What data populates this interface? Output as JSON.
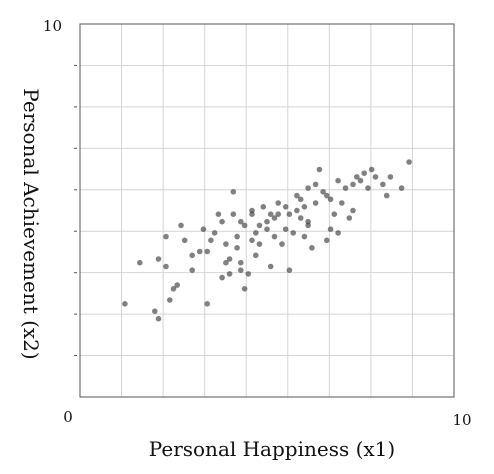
{
  "chart_data": {
    "type": "scatter",
    "title": "",
    "xlabel": "Personal Happiness (x1)",
    "ylabel": "Personal Achievement (x2)",
    "xlim": [
      0,
      10
    ],
    "ylim": [
      0,
      10
    ],
    "x_tick_labels": [
      "0",
      "10"
    ],
    "y_tick_labels": [
      "10"
    ],
    "grid": true,
    "point_color": "#333333",
    "points": [
      [
        1.2,
        2.5
      ],
      [
        1.6,
        3.6
      ],
      [
        2.0,
        2.3
      ],
      [
        2.1,
        2.1
      ],
      [
        2.1,
        3.7
      ],
      [
        2.3,
        3.5
      ],
      [
        2.3,
        4.3
      ],
      [
        2.5,
        2.9
      ],
      [
        2.6,
        3.0
      ],
      [
        2.7,
        4.6
      ],
      [
        2.8,
        4.2
      ],
      [
        3.0,
        3.4
      ],
      [
        3.0,
        3.8
      ],
      [
        3.2,
        3.9
      ],
      [
        3.4,
        2.5
      ],
      [
        3.4,
        3.9
      ],
      [
        3.5,
        4.2
      ],
      [
        3.6,
        4.4
      ],
      [
        3.8,
        3.2
      ],
      [
        3.8,
        4.7
      ],
      [
        3.9,
        3.6
      ],
      [
        3.9,
        4.1
      ],
      [
        4.0,
        3.7
      ],
      [
        4.1,
        4.9
      ],
      [
        4.1,
        5.5
      ],
      [
        4.2,
        4.0
      ],
      [
        4.2,
        4.3
      ],
      [
        4.3,
        4.7
      ],
      [
        4.3,
        3.6
      ],
      [
        4.4,
        4.6
      ],
      [
        4.4,
        2.9
      ],
      [
        4.5,
        3.3
      ],
      [
        4.6,
        4.9
      ],
      [
        4.6,
        5.0
      ],
      [
        4.7,
        4.4
      ],
      [
        4.7,
        3.8
      ],
      [
        4.8,
        4.6
      ],
      [
        4.8,
        4.1
      ],
      [
        4.9,
        5.1
      ],
      [
        5.0,
        4.7
      ],
      [
        5.0,
        4.5
      ],
      [
        5.1,
        4.9
      ],
      [
        5.1,
        3.5
      ],
      [
        5.2,
        4.3
      ],
      [
        5.2,
        4.8
      ],
      [
        5.3,
        5.2
      ],
      [
        5.4,
        4.1
      ],
      [
        5.5,
        4.5
      ],
      [
        5.6,
        4.9
      ],
      [
        5.6,
        3.4
      ],
      [
        5.7,
        4.4
      ],
      [
        5.8,
        5.0
      ],
      [
        5.8,
        5.4
      ],
      [
        5.9,
        4.8
      ],
      [
        6.0,
        5.1
      ],
      [
        6.0,
        4.3
      ],
      [
        6.1,
        4.6
      ],
      [
        6.1,
        5.6
      ],
      [
        6.2,
        4.0
      ],
      [
        6.3,
        5.2
      ],
      [
        6.3,
        5.7
      ],
      [
        6.4,
        6.1
      ],
      [
        6.5,
        5.5
      ],
      [
        6.6,
        4.2
      ],
      [
        6.6,
        5.4
      ],
      [
        6.7,
        5.3
      ],
      [
        6.8,
        4.9
      ],
      [
        6.9,
        5.8
      ],
      [
        6.9,
        4.4
      ],
      [
        7.0,
        5.2
      ],
      [
        7.1,
        5.6
      ],
      [
        7.2,
        4.8
      ],
      [
        7.3,
        5.7
      ],
      [
        7.4,
        5.9
      ],
      [
        7.5,
        5.8
      ],
      [
        7.6,
        6.0
      ],
      [
        7.7,
        5.6
      ],
      [
        7.8,
        6.1
      ],
      [
        7.9,
        5.9
      ],
      [
        8.1,
        5.7
      ],
      [
        8.2,
        5.4
      ],
      [
        8.3,
        5.9
      ],
      [
        8.6,
        5.6
      ],
      [
        8.8,
        6.3
      ],
      [
        3.3,
        4.5
      ],
      [
        4.0,
        3.3
      ],
      [
        5.3,
        4.9
      ],
      [
        6.1,
        4.7
      ],
      [
        4.6,
        4.2
      ],
      [
        3.7,
        4.9
      ],
      [
        5.9,
        5.3
      ],
      [
        6.7,
        4.5
      ],
      [
        4.3,
        3.4
      ],
      [
        5.5,
        5.1
      ],
      [
        7.3,
        5.0
      ],
      [
        2.4,
        2.6
      ]
    ]
  }
}
